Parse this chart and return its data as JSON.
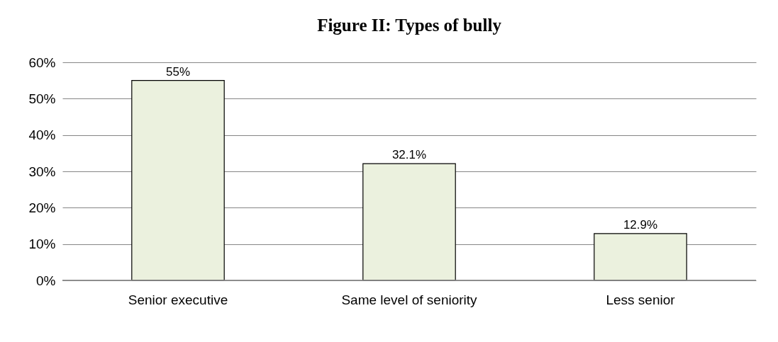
{
  "chart_data": {
    "type": "bar",
    "title": "Figure II: Types of bully",
    "categories": [
      "Senior executive",
      "Same level of seniority",
      "Less senior"
    ],
    "values": [
      55,
      32.1,
      12.9
    ],
    "value_labels": [
      "55%",
      "32.1%",
      "12.9%"
    ],
    "color": "#ebf1de",
    "ylim": [
      0,
      60
    ],
    "yticks": [
      {
        "value": 0,
        "label": "0%"
      },
      {
        "value": 10,
        "label": "10%"
      },
      {
        "value": 20,
        "label": "20%"
      },
      {
        "value": 30,
        "label": "30%"
      },
      {
        "value": 40,
        "label": "40%"
      },
      {
        "value": 50,
        "label": "50%"
      },
      {
        "value": 60,
        "label": "60%"
      }
    ],
    "grid": "y"
  }
}
